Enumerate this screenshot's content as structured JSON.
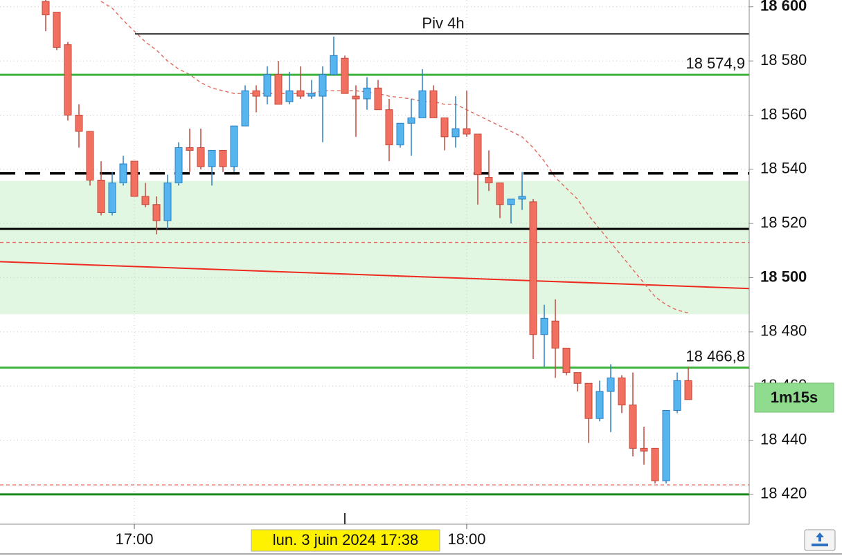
{
  "chart_data": {
    "type": "candlestick",
    "categories": [
      null,
      null,
      null,
      null,
      null,
      null,
      null,
      null,
      "17:00",
      null,
      null,
      null,
      null,
      null,
      null,
      null,
      null,
      null,
      null,
      null,
      null,
      null,
      null,
      null,
      null,
      null,
      null,
      null,
      null,
      null,
      null,
      null,
      null,
      null,
      null,
      null,
      null,
      null,
      "18:00",
      null,
      null,
      null,
      null,
      null,
      null,
      null,
      null,
      null,
      null,
      null,
      null,
      null,
      null,
      null,
      null,
      null,
      null,
      null,
      null
    ],
    "open": [
      18602,
      18598,
      18586,
      18560,
      18554,
      18536,
      18524,
      18535,
      18543,
      18530,
      18527,
      18521,
      18535,
      18548,
      18548,
      18541,
      18547,
      18541,
      18556,
      18569,
      18567,
      18575,
      18565,
      18569,
      18567,
      18567,
      18575,
      18581,
      18567,
      18566,
      18570,
      18562,
      18549,
      18557,
      18559,
      18569,
      18559,
      18552,
      18555,
      18553,
      18537,
      18535,
      18527,
      18529,
      18528,
      18479,
      18484,
      18474,
      18465,
      18461,
      18448,
      18458,
      18463,
      18453,
      18437,
      18437,
      18425,
      18451,
      18462
    ],
    "high": [
      18603,
      18598,
      18587,
      18564,
      18554,
      18543,
      18539,
      18545,
      18543,
      18535,
      18530,
      18538,
      18550,
      18555,
      18555,
      18547,
      18547,
      18556,
      18571,
      18571,
      18578,
      18580,
      18576,
      18578,
      18573,
      18578,
      18589,
      18582,
      18571,
      18574,
      18573,
      18566,
      18557,
      18566,
      18577,
      18571,
      18559,
      18567,
      18569,
      18553,
      18547,
      18535,
      18529,
      18539,
      18529,
      18490,
      18492,
      18474,
      18465,
      18461,
      18462,
      18468,
      18464,
      18465,
      18445,
      18437,
      18451,
      18465,
      18467
    ],
    "low": [
      18591,
      18584,
      18558,
      18548,
      18534,
      18523,
      18523,
      18534,
      18530,
      18526,
      18516,
      18518,
      18534,
      18539,
      18540,
      18534,
      18539,
      18539,
      18556,
      18561,
      18564,
      18564,
      18564,
      18566,
      18566,
      18550,
      18575,
      18568,
      18552,
      18562,
      18562,
      18543,
      18548,
      18545,
      18559,
      18559,
      18547,
      18548,
      18552,
      18527,
      18532,
      18522,
      18520,
      18525,
      18470,
      18467,
      18463,
      18464,
      18458,
      18439,
      18447,
      18443,
      18450,
      18434,
      18431,
      18424,
      18424,
      18450,
      18455
    ],
    "close": [
      18597,
      18585,
      18560,
      18554,
      18536,
      18524,
      18535,
      18542,
      18530,
      18527,
      18521,
      18535,
      18548,
      18547,
      18541,
      18547,
      18541,
      18556,
      18569,
      18567,
      18575,
      18564,
      18569,
      18567,
      18568,
      18575,
      18582,
      18568,
      18566,
      18570,
      18562,
      18549,
      18557,
      18559,
      18569,
      18559,
      18552,
      18555,
      18553,
      18538,
      18535,
      18527,
      18529,
      18530,
      18479,
      18485,
      18474,
      18465,
      18461,
      18448,
      18458,
      18463,
      18453,
      18437,
      18436,
      18425,
      18451,
      18462,
      18455
    ],
    "up_color": "#56b4ee",
    "down_color": "#f2705f",
    "moving_average": {
      "color": "#e06a5e",
      "values": [
        null,
        null,
        null,
        null,
        null,
        18602,
        18599.5,
        18595,
        18591,
        18587,
        18584,
        18580,
        18577,
        18575,
        18572,
        18570,
        18569,
        18568,
        18568,
        18568,
        18568,
        18568,
        18568,
        18568,
        18568,
        18569,
        18569,
        18569,
        18569,
        18568.5,
        18568,
        18567,
        18566.5,
        18566,
        18565,
        18565,
        18564,
        18564,
        18562,
        18560,
        18558,
        18556,
        18554,
        18552,
        18548,
        18543,
        18537,
        18533,
        18529,
        18523,
        18518,
        18513,
        18508,
        18503,
        18498,
        18493,
        18490,
        18488,
        18487
      ]
    },
    "trendline": {
      "color": "#ee2a1e",
      "values": [
        18505.9,
        18496
      ]
    },
    "zone": {
      "color": "#e2f7e2",
      "values": [
        18486.5,
        18535.7
      ]
    },
    "levels": [
      {
        "value": 18590,
        "label": "Piv 4h",
        "color": "#000000",
        "style": "thin"
      },
      {
        "value": 18574.9,
        "label": "18 574,9",
        "color": "#3cb43c",
        "style": "thick"
      },
      {
        "value": 18538.5,
        "color": "#000000",
        "style": "dashed"
      },
      {
        "value": 18518,
        "color": "#000000",
        "style": "thick"
      },
      {
        "value": 18513,
        "color": "#e06a5e",
        "style": "dotted"
      },
      {
        "value": 18466.8,
        "label": "18 466,8",
        "color": "#3cb43c",
        "style": "thick"
      },
      {
        "value": 18423.5,
        "color": "#e06a5e",
        "style": "dotted"
      },
      {
        "value": 18420,
        "color": "#1a8a1a",
        "style": "thick"
      }
    ],
    "ylim": [
      18409,
      18602.5
    ],
    "yticks": [
      {
        "value": 18420,
        "label": "18 420"
      },
      {
        "value": 18440,
        "label": "18 440"
      },
      {
        "value": 18460,
        "label": "18 460"
      },
      {
        "value": 18480,
        "label": "18 480"
      },
      {
        "value": 18500,
        "label": "18 500"
      },
      {
        "value": 18520,
        "label": "18 520"
      },
      {
        "value": 18540,
        "label": "18 540"
      },
      {
        "value": 18560,
        "label": "18 560"
      },
      {
        "value": 18580,
        "label": "18 580"
      },
      {
        "value": 18600,
        "label": "18 600"
      }
    ],
    "grid": true,
    "crosshair_label": "lun. 3 juin 2024 17:38",
    "timer": "1m15s"
  }
}
